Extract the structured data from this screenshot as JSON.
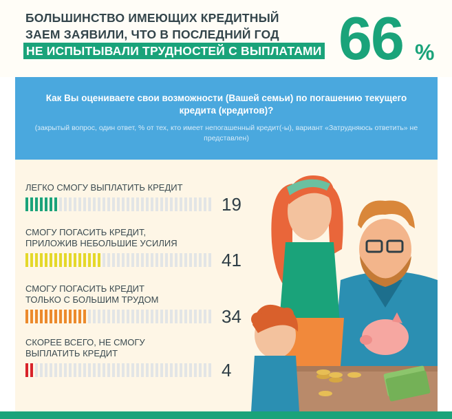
{
  "header": {
    "line1": "БОЛЬШИНСТВО ИМЕЮЩИХ КРЕДИТНЫЙ",
    "line2": "ЗАЕМ ЗАЯВИЛИ, ЧТО В ПОСЛЕДНИЙ ГОД",
    "line3": "НЕ ИСПЫТЫВАЛИ ТРУДНОСТЕЙ С ВЫПЛАТАМИ",
    "big_number": "66",
    "big_percent": "%"
  },
  "question": {
    "text": "Как Вы оцениваете свои возможности (Вашей семьи) по погашению текущего кредита (кредитов)?",
    "note": "(закрытый вопрос, один ответ, % от тех, кто имеет непогашенный кредит(-ы), вариант «Затрудняюсь ответить» не представлен)"
  },
  "chart_data": {
    "type": "bar",
    "categories": [
      "ЛЕГКО СМОГУ ВЫПЛАТИТЬ КРЕДИТ",
      "СМОГУ ПОГАСИТЬ КРЕДИТ, ПРИЛОЖИВ НЕБОЛЬШИЕ УСИЛИЯ",
      "СМОГУ ПОГАСИТЬ КРЕДИТ ТОЛЬКО С БОЛЬШИМ ТРУДОМ",
      "СКОРЕЕ ВСЕГО, НЕ СМОГУ ВЫПЛАТИТЬ КРЕДИТ"
    ],
    "values": [
      19,
      41,
      34,
      4
    ],
    "ylim": [
      0,
      100
    ],
    "colors": [
      "#1aa37a",
      "#e4d82a",
      "#ec8a2c",
      "#d8232a"
    ],
    "empty_color": "#e2e5e6"
  },
  "rows": [
    {
      "label_lines": [
        "ЛЕГКО СМОГУ ВЫПЛАТИТЬ КРЕДИТ"
      ],
      "value": "19"
    },
    {
      "label_lines": [
        "СМОГУ ПОГАСИТЬ КРЕДИТ,",
        "ПРИЛОЖИВ НЕБОЛЬШИЕ УСИЛИЯ"
      ],
      "value": "41"
    },
    {
      "label_lines": [
        "СМОГУ ПОГАСИТЬ КРЕДИТ",
        "ТОЛЬКО С БОЛЬШИМ ТРУДОМ"
      ],
      "value": "34"
    },
    {
      "label_lines": [
        "СКОРЕЕ ВСЕГО, НЕ СМОГУ",
        "ВЫПЛАТИТЬ КРЕДИТ"
      ],
      "value": "4"
    }
  ],
  "colors": {
    "accent": "#1aa37a",
    "question_bg": "#4aa8de",
    "panel_bg": "#fef6e6"
  },
  "illustration": {
    "icon_names": [
      "family-illustration",
      "piggy-bank-icon",
      "coins-icon",
      "banknotes-icon"
    ]
  }
}
